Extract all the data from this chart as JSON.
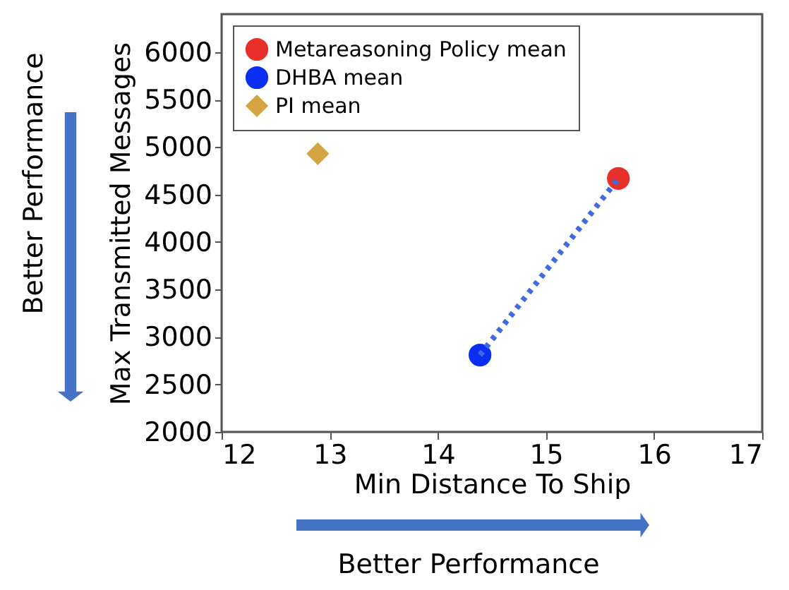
{
  "chart_data": {
    "type": "scatter",
    "xlabel": "Min Distance To Ship",
    "ylabel": "Max Transmitted Messages",
    "xlim": [
      12,
      17
    ],
    "ylim": [
      2000,
      6400
    ],
    "xticks": [
      12,
      13,
      14,
      15,
      16,
      17
    ],
    "yticks": [
      2000,
      2500,
      3000,
      3500,
      4000,
      4500,
      5000,
      5500,
      6000
    ],
    "grid": false,
    "legend": "top left",
    "annotations": [
      "Better Performance",
      "Better Performance"
    ],
    "series": [
      {
        "name": "Metareasoning Policy mean",
        "color": "#e8302a",
        "x": [
          15.67
        ],
        "values": [
          4670
        ],
        "marker": "circle"
      },
      {
        "name": "DHBA mean",
        "color": "#0a2ff0",
        "x": [
          14.39
        ],
        "values": [
          2810
        ],
        "marker": "circle"
      },
      {
        "name": "PI mean",
        "color": "#d4a443",
        "x": [
          12.89
        ],
        "values": [
          4930
        ],
        "marker": "diamond"
      },
      {
        "type": "line",
        "color": "#4169e1",
        "x": [
          14.39,
          15.67
        ],
        "values": [
          2810,
          4670
        ],
        "line_style": "dotted",
        "marker": "none"
      }
    ]
  }
}
